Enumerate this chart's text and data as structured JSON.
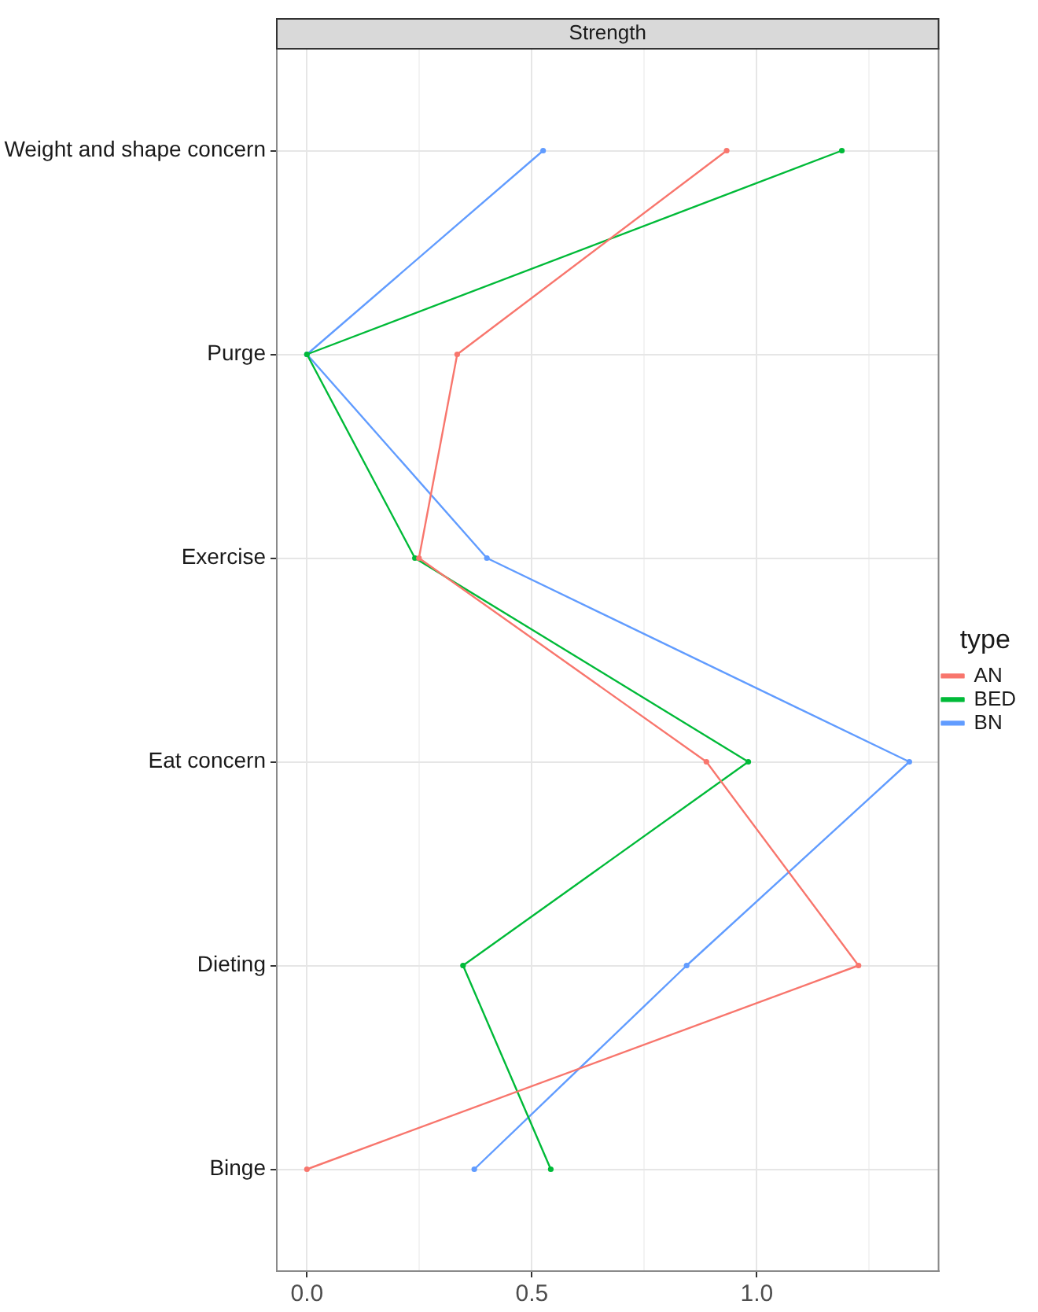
{
  "chart_data": {
    "type": "line",
    "title": "Strength",
    "orientation": "horizontal",
    "legend_title": "type",
    "legend": "right",
    "grid": true,
    "marker": "circle",
    "line_style": "solid",
    "categories": [
      "Weight and shape concern",
      "Purge",
      "Exercise",
      "Eat concern",
      "Dieting",
      "Binge"
    ],
    "xlim": [
      -0.067,
      1.404
    ],
    "xticks": [
      {
        "value": 0,
        "label": "0.0"
      },
      {
        "value": 0.25,
        "label": null
      },
      {
        "value": 0.5,
        "label": "0.5"
      },
      {
        "value": 0.75,
        "label": null
      },
      {
        "value": 1,
        "label": "1.0"
      },
      {
        "value": 1.25,
        "label": null
      }
    ],
    "series": [
      {
        "name": "AN",
        "color": "#f8766d",
        "values": [
          0.933,
          0.334,
          0.249,
          0.888,
          1.226,
          0
        ]
      },
      {
        "name": "BED",
        "color": "#00ba38",
        "values": [
          1.189,
          0,
          0.24,
          0.981,
          0.347,
          0.542
        ]
      },
      {
        "name": "BN",
        "color": "#619cff",
        "values": [
          0.525,
          0,
          0.4,
          1.339,
          0.844,
          0.372
        ]
      }
    ]
  }
}
